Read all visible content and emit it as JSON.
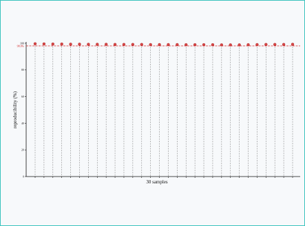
{
  "chart_data": {
    "type": "scatter",
    "title": "",
    "xlabel": "30 samples",
    "ylabel": "reproducibility (%)",
    "ylim": [
      0,
      100
    ],
    "yticks": [
      0,
      20,
      40,
      60,
      80,
      100
    ],
    "ytick_labels": [
      "0",
      "20",
      "40",
      "60",
      "80",
      "100"
    ],
    "x": [
      1,
      2,
      3,
      4,
      5,
      6,
      7,
      8,
      9,
      10,
      11,
      12,
      13,
      14,
      15,
      16,
      17,
      18,
      19,
      20,
      21,
      22,
      23,
      24,
      25,
      26,
      27,
      28,
      29,
      30
    ],
    "values": [
      99.6,
      99.5,
      99.4,
      99.4,
      99.3,
      99.3,
      99.2,
      99.2,
      99.2,
      99.1,
      99.1,
      99.1,
      99.1,
      99.0,
      99.0,
      99.0,
      99.0,
      98.9,
      98.9,
      98.9,
      98.9,
      98.8,
      98.8,
      98.8,
      98.9,
      99.0,
      99.1,
      99.1,
      99.1,
      99.2
    ],
    "reference_line": {
      "value": 98,
      "label": "98.0%",
      "color": "#d32f2f",
      "style": "dashed"
    },
    "marker_color": "#d64545",
    "vertical_gridlines": true,
    "grid_style": "dashed"
  }
}
